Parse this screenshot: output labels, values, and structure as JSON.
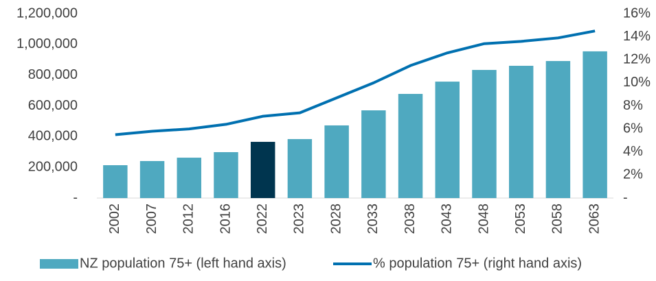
{
  "chart_data": {
    "type": "bar",
    "categories": [
      "2002",
      "2007",
      "2012",
      "2016",
      "2022",
      "2023",
      "2028",
      "2033",
      "2038",
      "2043",
      "2048",
      "2053",
      "2058",
      "2063"
    ],
    "series": [
      {
        "name": "NZ population 75+ (left hand axis)",
        "type": "bar",
        "color": "#4fa9c0",
        "colors": [
          "#4fa9c0",
          "#4fa9c0",
          "#4fa9c0",
          "#4fa9c0",
          "#00354f",
          "#4fa9c0",
          "#4fa9c0",
          "#4fa9c0",
          "#4fa9c0",
          "#4fa9c0",
          "#4fa9c0",
          "#4fa9c0",
          "#4fa9c0",
          "#4fa9c0"
        ],
        "values": [
          214000,
          241000,
          263000,
          299000,
          366000,
          384000,
          473000,
          571000,
          678000,
          758000,
          834000,
          861000,
          892000,
          955000
        ]
      },
      {
        "name": "% population 75+ (right hand axis)",
        "type": "line",
        "axis": "y2",
        "color": "#0070b0",
        "values": [
          5.5,
          5.8,
          6.0,
          6.4,
          7.1,
          7.4,
          8.7,
          10.0,
          11.5,
          12.6,
          13.4,
          13.6,
          13.9,
          14.5
        ]
      }
    ],
    "ylim": [
      0,
      1200000
    ],
    "yticks": [
      {
        "value": 0,
        "label": "-"
      },
      {
        "value": 200000,
        "label": "200,000"
      },
      {
        "value": 400000,
        "label": "400,000"
      },
      {
        "value": 600000,
        "label": "600,000"
      },
      {
        "value": 800000,
        "label": "800,000"
      },
      {
        "value": 1000000,
        "label": "1,000,000"
      },
      {
        "value": 1200000,
        "label": "1,200,000"
      }
    ],
    "y2lim": [
      0,
      16
    ],
    "y2ticks": [
      {
        "value": 0,
        "label": "-"
      },
      {
        "value": 2,
        "label": "2%"
      },
      {
        "value": 4,
        "label": "4%"
      },
      {
        "value": 6,
        "label": "6%"
      },
      {
        "value": 8,
        "label": "8%"
      },
      {
        "value": 10,
        "label": "10%"
      },
      {
        "value": 12,
        "label": "12%"
      },
      {
        "value": 14,
        "label": "14%"
      },
      {
        "value": 16,
        "label": "16%"
      }
    ],
    "legend": "bottom"
  }
}
